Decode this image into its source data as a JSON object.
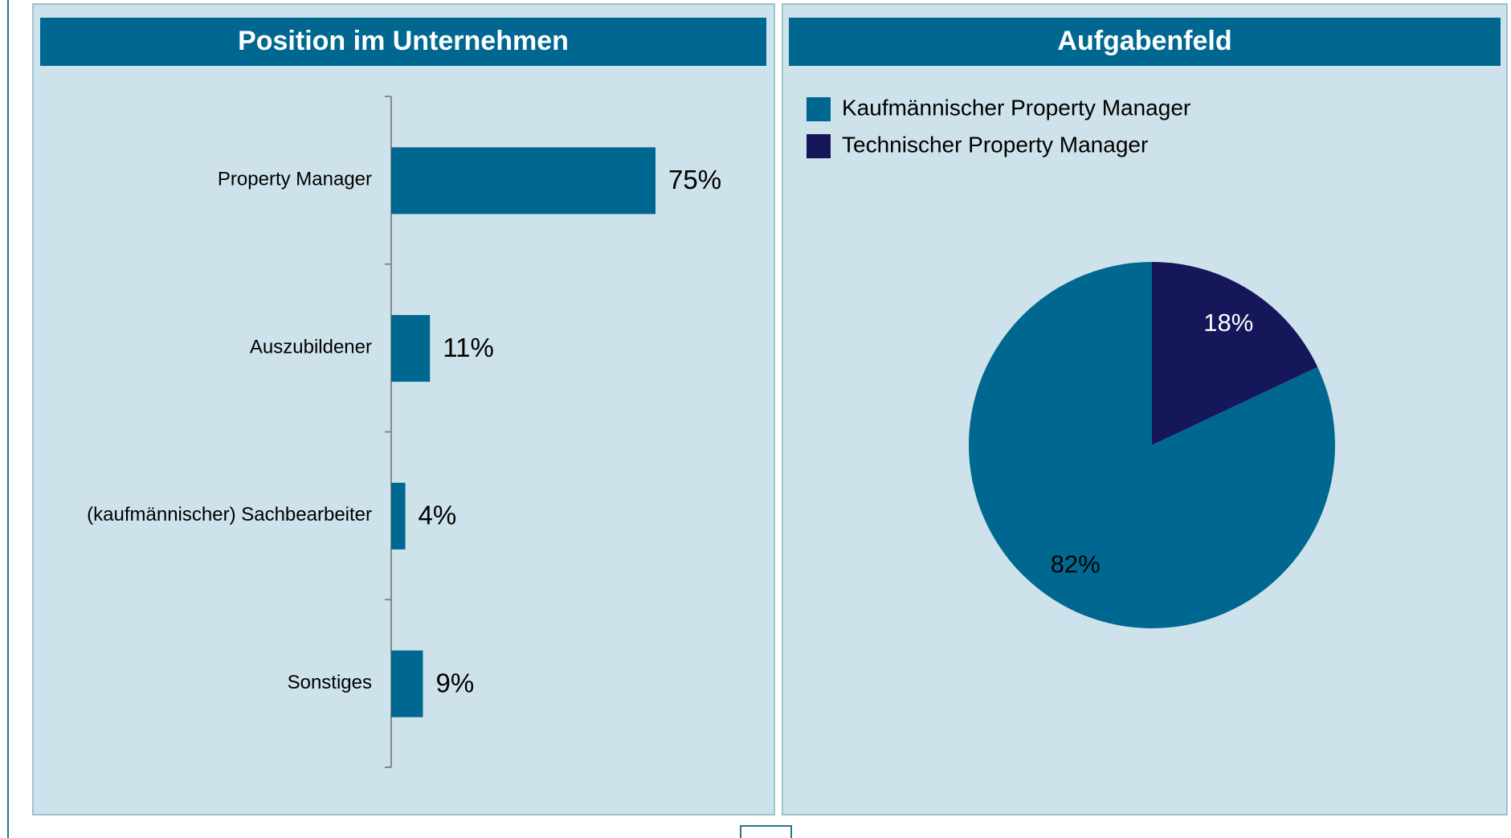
{
  "chart_data": [
    {
      "type": "bar",
      "orientation": "horizontal",
      "title": "Position im Unternehmen",
      "categories": [
        "Property Manager",
        "Auszubildener",
        "(kaufmännischer) Sachbearbeiter",
        "Sonstiges"
      ],
      "values": [
        75,
        11,
        4,
        9
      ],
      "value_labels": [
        "75%",
        "11%",
        "4%",
        "9%"
      ],
      "color": "#006890"
    },
    {
      "type": "pie",
      "title": "Aufgabenfeld",
      "categories": [
        "Technischer Property Manager",
        "Kaufmännischer Property Manager"
      ],
      "values": [
        18,
        82
      ],
      "value_labels": [
        "18%",
        "82%"
      ],
      "colors": [
        "#16165a",
        "#006890"
      ],
      "label_colors": [
        "#ffffff",
        "#000000"
      ],
      "legend_order": [
        1,
        0
      ],
      "legend": "top-left"
    }
  ]
}
